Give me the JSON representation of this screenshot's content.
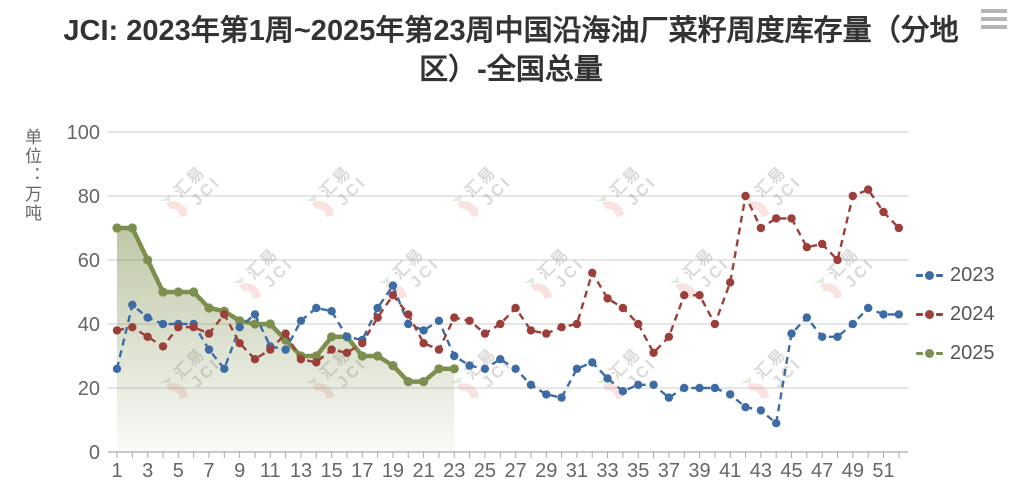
{
  "page": {
    "title": "JCI: 2023年第1周~2025年第23周中国沿海油厂菜籽周度库存量（分地区）-全国总量"
  },
  "y_axis_unit": "单位：万吨",
  "watermark": {
    "line1": "汇易",
    "line2": "JCI"
  },
  "chart_data": {
    "type": "line",
    "title": "JCI: 2023年第1周~2025年第23周中国沿海油厂菜籽周度库存量（分地区）-全国总量",
    "ylabel": "单位：万吨",
    "xlabel": "",
    "ylim": [
      0,
      100
    ],
    "xlim": [
      1,
      52
    ],
    "yticks": [
      0,
      20,
      40,
      60,
      80,
      100
    ],
    "xtick_labels": [
      1,
      3,
      5,
      7,
      9,
      11,
      13,
      15,
      17,
      19,
      21,
      23,
      25,
      27,
      29,
      31,
      33,
      35,
      37,
      39,
      41,
      43,
      45,
      47,
      49,
      51
    ],
    "grid": "horizontal",
    "legend_position": "right",
    "colors": {
      "grid": "#d8d8d8",
      "axis": "#b8b8b8",
      "tick": "#aaaaaa",
      "label": "#666666"
    },
    "x": [
      1,
      2,
      3,
      4,
      5,
      6,
      7,
      8,
      9,
      10,
      11,
      12,
      13,
      14,
      15,
      16,
      17,
      18,
      19,
      20,
      21,
      22,
      23,
      24,
      25,
      26,
      27,
      28,
      29,
      30,
      31,
      32,
      33,
      34,
      35,
      36,
      37,
      38,
      39,
      40,
      41,
      42,
      43,
      44,
      45,
      46,
      47,
      48,
      49,
      50,
      51,
      52
    ],
    "series": [
      {
        "name": "2023",
        "color": "#3d6ca5",
        "style": "dashed",
        "area": false,
        "values": [
          26,
          46,
          42,
          40,
          40,
          40,
          32,
          26,
          39,
          43,
          33,
          32,
          41,
          45,
          44,
          36,
          35,
          45,
          52,
          40,
          38,
          41,
          30,
          27,
          26,
          29,
          26,
          21,
          18,
          17,
          26,
          28,
          23,
          19,
          21,
          21,
          17,
          20,
          20,
          20,
          18,
          14,
          13,
          9,
          37,
          42,
          36,
          36,
          40,
          45,
          43,
          43
        ]
      },
      {
        "name": "2024",
        "color": "#9c3f3a",
        "style": "dashed",
        "area": false,
        "values": [
          38,
          39,
          36,
          33,
          39,
          39,
          37,
          43,
          34,
          29,
          32,
          37,
          29,
          28,
          32,
          31,
          34,
          42,
          49,
          43,
          34,
          32,
          42,
          41,
          37,
          40,
          45,
          38,
          37,
          39,
          40,
          56,
          48,
          45,
          40,
          31,
          36,
          49,
          49,
          40,
          53,
          80,
          70,
          73,
          73,
          64,
          65,
          60,
          80,
          82,
          75,
          70
        ]
      },
      {
        "name": "2025",
        "color": "#7d8f4e",
        "style": "solid",
        "area": true,
        "values": [
          70,
          70,
          60,
          50,
          50,
          50,
          45,
          44,
          41,
          40,
          40,
          35,
          30,
          30,
          36,
          36,
          30,
          30,
          27,
          22,
          22,
          26,
          26
        ]
      }
    ]
  }
}
